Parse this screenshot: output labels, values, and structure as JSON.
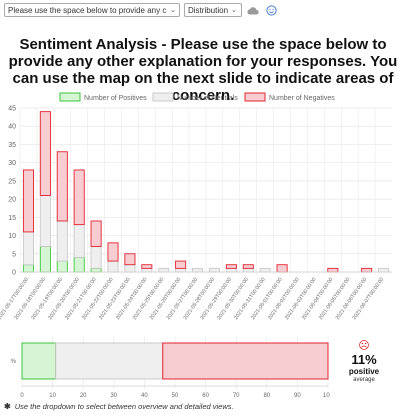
{
  "toolbar": {
    "question_select_value": "Please use the space below to provide any c",
    "view_select_value": "Distribution",
    "caret": "⌄",
    "cloud_icon": "cloud-icon",
    "smiley_icon": "smiley-icon"
  },
  "title": "Sentiment Analysis - Please use the space below to provide any other explanation for your responses. You can use the map on the next slide to indicate areas of concern.",
  "colors": {
    "positive_fill": "#d5f5d5",
    "positive_stroke": "#3dc53d",
    "neutral_fill": "#efefef",
    "neutral_stroke": "#c9c9c9",
    "negative_fill": "#f8cdd1",
    "negative_stroke": "#e0242f",
    "grid": "#e6e6e6",
    "text": "#666666"
  },
  "chart_data": [
    {
      "type": "bar",
      "stacked": true,
      "legend_position": "top",
      "grid": true,
      "ylim": [
        0,
        45
      ],
      "yticks": [
        0,
        5,
        10,
        15,
        20,
        25,
        30,
        35,
        40,
        45
      ],
      "categories": [
        "2021-05-17T00:00:00",
        "2021-05-18T00:00:00",
        "2021-05-19T00:00:00",
        "2021-05-20T00:00:00",
        "2021-05-21T00:00:00",
        "2021-05-22T00:00:00",
        "2021-05-23T00:00:00",
        "2021-05-24T00:00:00",
        "2021-05-25T00:00:00",
        "2021-05-26T00:00:00",
        "2021-05-27T00:00:00",
        "2021-05-28T00:00:00",
        "2021-05-29T00:00:00",
        "2021-05-30T00:00:00",
        "2021-05-31T00:00:00",
        "2021-06-01T00:00:00",
        "2021-06-02T00:00:00",
        "2021-06-03T00:00:00",
        "2021-06-04T00:00:00",
        "2021-06-05T00:00:00",
        "2021-06-06T00:00:00",
        "2021-06-07T00:00:00"
      ],
      "series": [
        {
          "name": "Number of Positives",
          "values": [
            2,
            7,
            3,
            4,
            1,
            0,
            0,
            0,
            0,
            0,
            0,
            0,
            0,
            0,
            0,
            0,
            0,
            0,
            0,
            0,
            0,
            0
          ]
        },
        {
          "name": "Number of Neutrals",
          "values": [
            9,
            14,
            11,
            9,
            6,
            3,
            2,
            1,
            1,
            1,
            1,
            1,
            1,
            1,
            1,
            0,
            0,
            0,
            0,
            0,
            0,
            1
          ]
        },
        {
          "name": "Number of Negatives",
          "values": [
            17,
            23,
            19,
            15,
            7,
            5,
            3,
            1,
            0,
            2,
            0,
            0,
            1,
            1,
            0,
            2,
            0,
            0,
            1,
            0,
            1,
            0
          ]
        }
      ]
    },
    {
      "type": "bar",
      "orientation": "horizontal",
      "stacked": true,
      "grid": true,
      "categories": [
        "%"
      ],
      "xlim": [
        0,
        100
      ],
      "xticks": [
        0,
        10,
        20,
        30,
        40,
        50,
        60,
        70,
        80,
        90,
        100
      ],
      "series": [
        {
          "name": "Positive",
          "values": [
            11
          ]
        },
        {
          "name": "Neutral",
          "values": [
            35
          ]
        },
        {
          "name": "Negative",
          "values": [
            54
          ]
        }
      ]
    }
  ],
  "summary": {
    "face": "☹",
    "percent": "11%",
    "label": "positive",
    "sublabel": "average"
  },
  "footnote": {
    "icon": "✱",
    "text": "Use the dropdown to select between overview and detailed views."
  }
}
